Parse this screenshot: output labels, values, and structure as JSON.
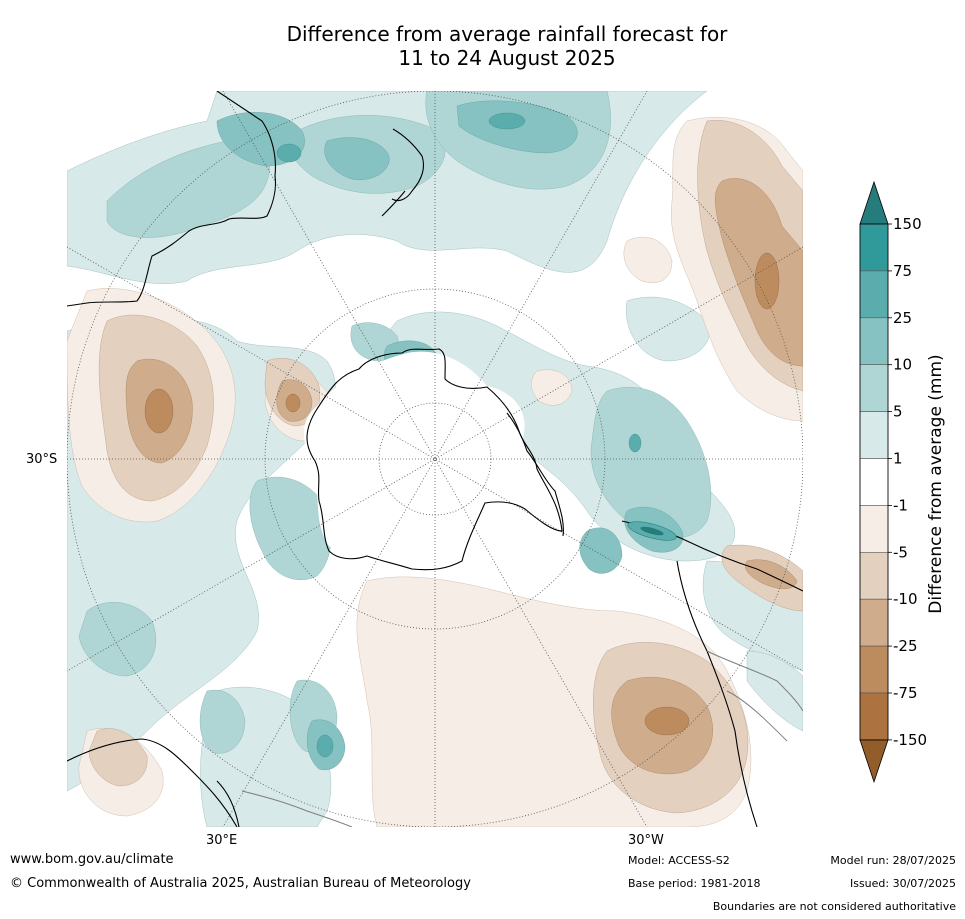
{
  "title": {
    "line1": "Difference from average rainfall forecast for",
    "line2": "11 to 24 August 2025"
  },
  "map": {
    "projection": "south-polar-stereographic",
    "graticule_labels": {
      "lat_30s": "30°S",
      "lon_30e": "30°E",
      "lon_30w": "30°W"
    },
    "colors": {
      "coast": "#000000",
      "boundaries": "#808080",
      "graticule": "#555555"
    }
  },
  "colorbar": {
    "title": "Difference from average (mm)",
    "tick_labels": [
      "150",
      "75",
      "25",
      "10",
      "5",
      "1",
      "-1",
      "-5",
      "-10",
      "-25",
      "-75",
      "-150"
    ],
    "colors_top_to_bottom": [
      "#267c7a",
      "#30999a",
      "#5aacad",
      "#86c2c1",
      "#afd6d5",
      "#d7e9e8",
      "#ffffff",
      "#f5ede6",
      "#e3d0bf",
      "#cfac8c",
      "#bd8c5e",
      "#ac7340",
      "#935d2a"
    ]
  },
  "footer": {
    "website": "www.bom.gov.au/climate",
    "copyright": "© Commonwealth of Australia 2025, Australian Bureau of Meteorology",
    "model": "Model: ACCESS-S2",
    "base_period": "Base period: 1981-2018",
    "model_run": "Model run: 28/07/2025",
    "issued": "Issued: 30/07/2025",
    "disclaimer": "Boundaries are not considered authoritative"
  }
}
